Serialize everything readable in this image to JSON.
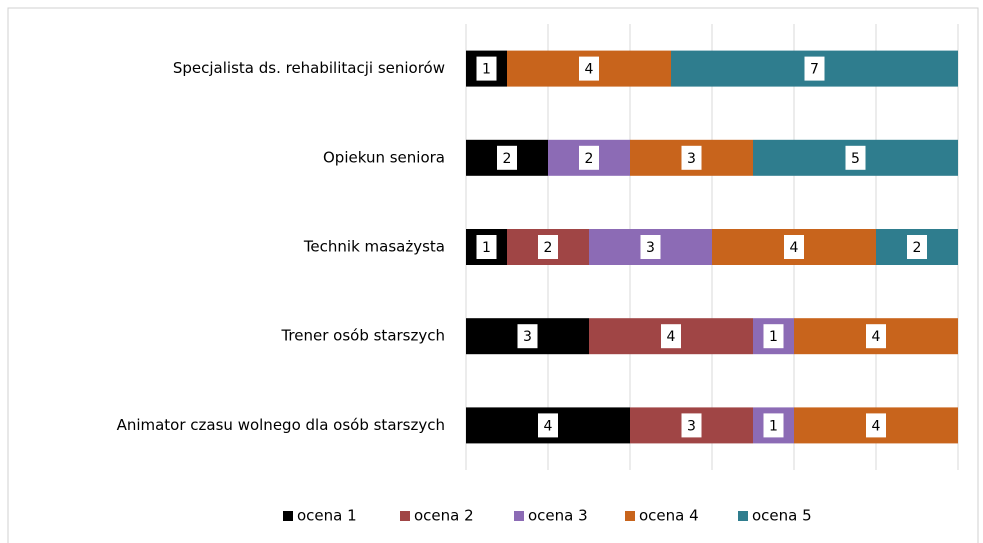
{
  "chart_data": {
    "type": "stacked-barh",
    "categories": [
      "Specjalista ds. rehabilitacji seniorów",
      "Opiekun seniora",
      "Technik masażysta",
      "Trener osób starszych",
      "Animator czasu wolnego dla osób starszych"
    ],
    "series": [
      {
        "name": "ocena 1",
        "color": "#000000",
        "values": [
          1,
          2,
          1,
          3,
          4
        ]
      },
      {
        "name": "ocena 2",
        "color": "#a04545",
        "values": [
          null,
          null,
          2,
          4,
          3
        ]
      },
      {
        "name": "ocena 3",
        "color": "#8c6bb5",
        "values": [
          null,
          2,
          3,
          1,
          1
        ]
      },
      {
        "name": "ocena 4",
        "color": "#c8641c",
        "values": [
          4,
          3,
          4,
          4,
          4
        ]
      },
      {
        "name": "ocena 5",
        "color": "#2f7d8e",
        "values": [
          7,
          5,
          2,
          null,
          null
        ]
      }
    ],
    "xlim": [
      0,
      12
    ],
    "xticks": [
      0,
      2,
      4,
      6,
      8,
      10,
      12
    ],
    "grid": true,
    "legend": "bottom"
  }
}
